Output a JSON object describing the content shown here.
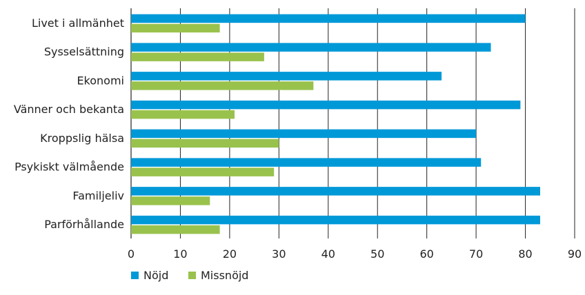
{
  "chart_data": {
    "type": "bar",
    "orientation": "horizontal",
    "categories": [
      "Livet i allmänhet",
      "Sysselsättning",
      "Ekonomi",
      "Vänner och bekanta",
      "Kroppslig hälsa",
      "Psykiskt välmående",
      "Familjeliv",
      "Parförhållande"
    ],
    "series": [
      {
        "name": "Nöjd",
        "color": "#0099d8",
        "values": [
          80,
          73,
          63,
          79,
          70,
          71,
          83,
          83
        ]
      },
      {
        "name": "Missnöjd",
        "color": "#99c24d",
        "values": [
          18,
          27,
          37,
          21,
          30,
          29,
          16,
          18
        ]
      }
    ],
    "xlim": [
      0,
      90
    ],
    "xticks": [
      "0",
      "10",
      "20",
      "30",
      "40",
      "50",
      "60",
      "70",
      "80",
      "90"
    ],
    "grid": "vertical",
    "legend_position": "bottom-left"
  }
}
